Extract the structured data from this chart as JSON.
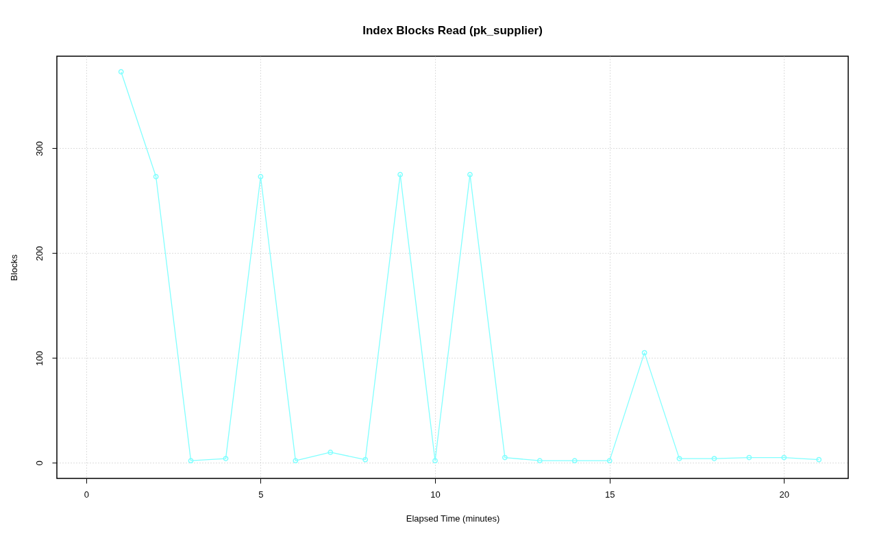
{
  "chart_data": {
    "type": "line",
    "title": "Index Blocks Read (pk_supplier)",
    "xlabel": "Elapsed Time (minutes)",
    "ylabel": "Blocks",
    "x": [
      1,
      2,
      3,
      4,
      5,
      6,
      7,
      8,
      9,
      10,
      11,
      12,
      13,
      14,
      15,
      16,
      17,
      18,
      19,
      20,
      21
    ],
    "series": [
      {
        "color": "#80ffff",
        "values": [
          373,
          273,
          2,
          4,
          273,
          2,
          10,
          3,
          275,
          2,
          275,
          5,
          2,
          2,
          2,
          105,
          4,
          4,
          5,
          5,
          3
        ]
      }
    ],
    "xlim": [
      -0.84,
      21.84
    ],
    "ylim": [
      -14.9,
      387.9
    ],
    "xticks": [
      0,
      5,
      10,
      15,
      20
    ],
    "yticks": [
      0,
      100,
      200,
      300
    ],
    "grid": true,
    "marker": "circle",
    "line_style": "solid"
  }
}
